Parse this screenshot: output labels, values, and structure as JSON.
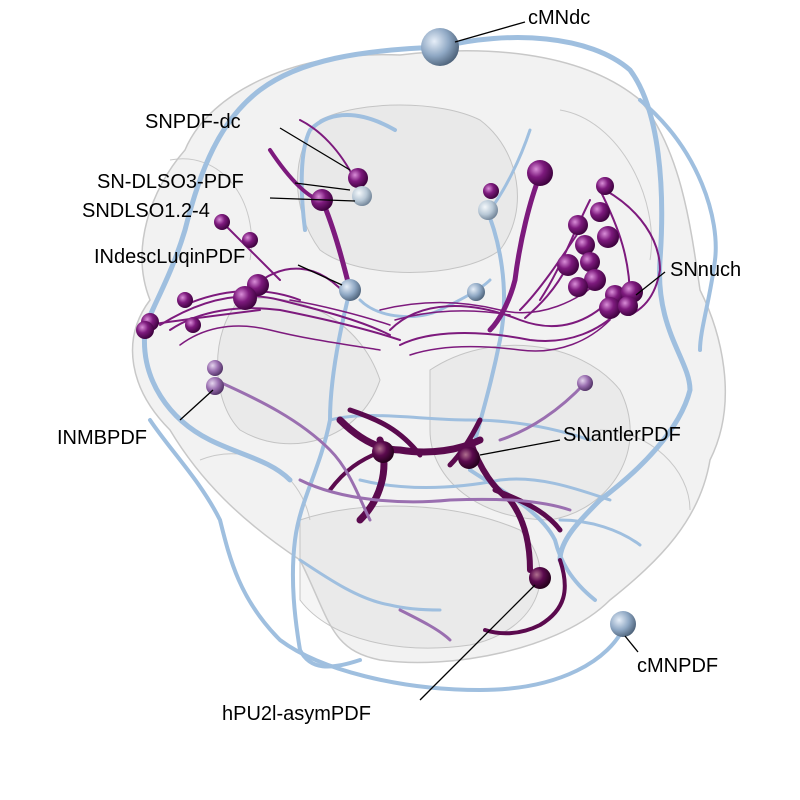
{
  "labels": {
    "cmndc": "cMNdc",
    "snpdf_dc": "SNPDF-dc",
    "sn_dlso3_pdf": "SN-DLSO3-PDF",
    "sndlso12_4": "SNDLSO1.2-4",
    "indesc_luqin_pdf": "INdescLuqinPDF",
    "snnuch": "SNnuch",
    "inmbpdf": "INMBPDF",
    "snantler_pdf": "SNantlerPDF",
    "cmnpdf": "cMNPDF",
    "hpu2l_asym_pdf": "hPU2l-asymPDF"
  },
  "colors": {
    "background": "#ffffff",
    "body_outline": "#d9d9d9",
    "light_blue_neuron": "#9fbfdf",
    "purple_neuron": "#7d1a7d",
    "dark_purple_neuron": "#5b0a4e",
    "lavender_neuron": "#9a6fb0",
    "label_text": "#000000"
  }
}
